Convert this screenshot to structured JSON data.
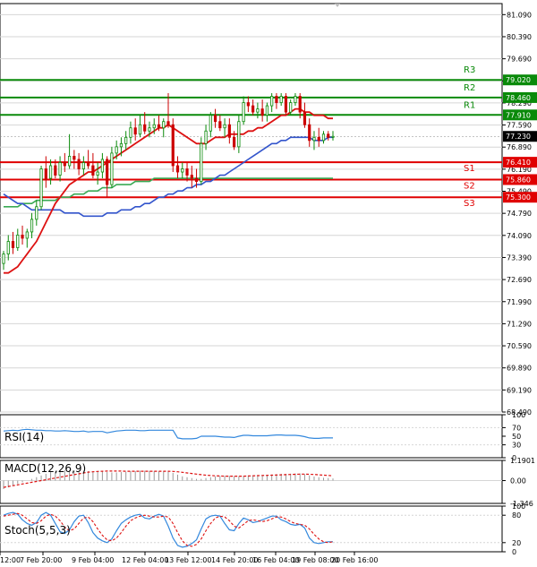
{
  "colors": {
    "bg": "#ffffff",
    "grid": "#d6d6d6",
    "level_green": "#0a8a0a",
    "level_red": "#e00000",
    "bull": "#0a8a0a",
    "bear": "#cc0000",
    "ma_fast": "#dd1111",
    "ma_mid": "#3355cc",
    "ma_slow": "#3aaa55",
    "macd_signal": "#dd1111",
    "stoch_k": "#3388dd",
    "stoch_d": "#dd1111",
    "rsi": "#3388dd",
    "frame": "#000000"
  },
  "chart_data": [
    {
      "type": "candlestick",
      "panel": "main",
      "y_ticks": [
        "81.090",
        "80.390",
        "79.690",
        "78.990",
        "78.290",
        "77.590",
        "76.890",
        "76.190",
        "75.490",
        "74.790",
        "74.090",
        "73.390",
        "72.690",
        "71.990",
        "71.290",
        "70.590",
        "69.890",
        "69.190",
        "68.490"
      ],
      "ylim": [
        68.49,
        81.44
      ],
      "x_labels": [
        "12:00",
        "7 Feb 20:00",
        "9 Feb 04:00",
        "12 Feb 04:00",
        "13 Feb 12:00",
        "14 Feb 20:00",
        "16 Feb 04:00",
        "19 Feb 08:00",
        "20 Feb 16:00"
      ],
      "levels": [
        {
          "name": "R3",
          "price": 79.02,
          "label": "79.020",
          "color": "green"
        },
        {
          "name": "R2",
          "price": 78.46,
          "label": "78.460",
          "color": "green"
        },
        {
          "name": "R1",
          "price": 77.91,
          "label": "77.910",
          "color": "green"
        },
        {
          "name": "S1",
          "price": 76.41,
          "label": "76.410",
          "color": "red"
        },
        {
          "name": "S2",
          "price": 75.86,
          "label": "75.860",
          "color": "red"
        },
        {
          "name": "S3",
          "price": 75.3,
          "label": "75.300",
          "color": "red"
        }
      ],
      "current_price": {
        "price": 77.23,
        "label": "77.230"
      },
      "ohlc": [
        [
          73.2,
          73.6,
          73.0,
          73.5
        ],
        [
          73.5,
          74.1,
          73.3,
          73.9
        ],
        [
          73.9,
          74.2,
          73.5,
          73.7
        ],
        [
          73.7,
          74.3,
          73.6,
          74.1
        ],
        [
          74.1,
          74.4,
          73.8,
          74.0
        ],
        [
          74.0,
          74.3,
          73.7,
          74.2
        ],
        [
          74.2,
          74.8,
          74.0,
          74.6
        ],
        [
          74.6,
          75.2,
          74.4,
          75.0
        ],
        [
          75.0,
          76.3,
          74.9,
          76.2
        ],
        [
          76.2,
          76.6,
          75.6,
          75.9
        ],
        [
          75.9,
          76.5,
          75.7,
          76.3
        ],
        [
          76.3,
          76.5,
          75.9,
          76.0
        ],
        [
          76.0,
          76.6,
          75.8,
          76.4
        ],
        [
          76.4,
          76.7,
          76.1,
          76.3
        ],
        [
          76.3,
          77.3,
          76.2,
          76.6
        ],
        [
          76.6,
          76.8,
          76.2,
          76.5
        ],
        [
          76.5,
          76.7,
          76.0,
          76.2
        ],
        [
          76.2,
          76.6,
          76.0,
          76.4
        ],
        [
          76.4,
          76.8,
          76.2,
          76.3
        ],
        [
          76.3,
          76.7,
          75.9,
          76.0
        ],
        [
          76.0,
          76.4,
          75.7,
          76.1
        ],
        [
          76.1,
          76.7,
          75.9,
          76.5
        ],
        [
          76.5,
          76.6,
          75.3,
          75.7
        ],
        [
          75.7,
          76.9,
          75.6,
          76.7
        ],
        [
          76.7,
          77.1,
          76.5,
          76.9
        ],
        [
          76.9,
          77.2,
          76.6,
          77.0
        ],
        [
          77.0,
          77.4,
          76.8,
          77.2
        ],
        [
          77.2,
          77.7,
          77.0,
          77.5
        ],
        [
          77.5,
          77.8,
          77.1,
          77.3
        ],
        [
          77.3,
          77.9,
          77.2,
          77.6
        ],
        [
          77.6,
          78.0,
          77.3,
          77.4
        ],
        [
          77.4,
          77.7,
          77.2,
          77.5
        ],
        [
          77.5,
          77.8,
          77.3,
          77.6
        ],
        [
          77.6,
          77.9,
          77.4,
          77.5
        ],
        [
          77.5,
          77.8,
          77.2,
          77.7
        ],
        [
          77.7,
          78.6,
          77.5,
          77.6
        ],
        [
          77.6,
          77.8,
          76.1,
          76.3
        ],
        [
          76.3,
          76.6,
          75.9,
          76.1
        ],
        [
          76.1,
          76.4,
          75.9,
          76.2
        ],
        [
          76.2,
          76.4,
          75.8,
          76.0
        ],
        [
          76.0,
          76.3,
          75.6,
          75.9
        ],
        [
          75.9,
          76.2,
          75.6,
          75.8
        ],
        [
          75.8,
          77.2,
          75.7,
          77.0
        ],
        [
          77.0,
          77.6,
          76.8,
          77.4
        ],
        [
          77.4,
          78.0,
          77.2,
          77.9
        ],
        [
          77.9,
          78.1,
          77.5,
          77.7
        ],
        [
          77.7,
          77.9,
          77.4,
          77.5
        ],
        [
          77.5,
          77.8,
          77.2,
          77.6
        ],
        [
          77.6,
          77.8,
          77.0,
          77.2
        ],
        [
          77.2,
          77.4,
          76.8,
          76.9
        ],
        [
          76.9,
          77.9,
          76.7,
          77.7
        ],
        [
          77.7,
          78.5,
          77.6,
          78.3
        ],
        [
          78.3,
          78.5,
          78.0,
          78.2
        ],
        [
          78.2,
          78.4,
          77.9,
          78.0
        ],
        [
          78.0,
          78.3,
          77.8,
          78.1
        ],
        [
          78.1,
          78.4,
          77.7,
          77.9
        ],
        [
          77.9,
          78.3,
          77.7,
          78.2
        ],
        [
          78.2,
          78.6,
          78.0,
          78.5
        ],
        [
          78.5,
          78.6,
          78.1,
          78.3
        ],
        [
          78.3,
          78.6,
          78.2,
          78.5
        ],
        [
          78.5,
          78.6,
          77.9,
          78.0
        ],
        [
          78.0,
          78.4,
          77.9,
          78.3
        ],
        [
          78.3,
          78.6,
          78.2,
          78.5
        ],
        [
          78.5,
          78.6,
          77.8,
          78.0
        ],
        [
          78.0,
          78.3,
          77.5,
          77.6
        ],
        [
          77.6,
          77.8,
          76.9,
          77.1
        ],
        [
          77.1,
          77.4,
          76.8,
          77.2
        ],
        [
          77.2,
          77.5,
          76.9,
          77.1
        ],
        [
          77.1,
          77.4,
          77.0,
          77.3
        ],
        [
          77.3,
          77.4,
          77.1,
          77.2
        ],
        [
          77.2,
          77.4,
          77.1,
          77.23
        ]
      ],
      "ma_fast": [
        72.9,
        72.9,
        73.0,
        73.1,
        73.3,
        73.5,
        73.7,
        73.9,
        74.2,
        74.5,
        74.8,
        75.1,
        75.3,
        75.5,
        75.7,
        75.8,
        75.9,
        76.0,
        76.1,
        76.1,
        76.2,
        76.3,
        76.4,
        76.5,
        76.6,
        76.7,
        76.8,
        76.9,
        77.0,
        77.1,
        77.2,
        77.3,
        77.4,
        77.5,
        77.5,
        77.6,
        77.5,
        77.4,
        77.3,
        77.2,
        77.1,
        77.0,
        77.0,
        77.0,
        77.1,
        77.2,
        77.2,
        77.2,
        77.3,
        77.3,
        77.3,
        77.3,
        77.4,
        77.4,
        77.5,
        77.5,
        77.6,
        77.7,
        77.8,
        77.9,
        77.9,
        78.0,
        78.1,
        78.1,
        78.0,
        78.0,
        77.9,
        77.9,
        77.9,
        77.8,
        77.8
      ],
      "ma_mid": [
        75.4,
        75.3,
        75.2,
        75.1,
        75.1,
        75.0,
        74.9,
        74.9,
        74.9,
        74.9,
        74.9,
        74.9,
        74.9,
        74.8,
        74.8,
        74.8,
        74.8,
        74.7,
        74.7,
        74.7,
        74.7,
        74.7,
        74.8,
        74.8,
        74.8,
        74.9,
        74.9,
        74.9,
        75.0,
        75.0,
        75.1,
        75.1,
        75.2,
        75.3,
        75.3,
        75.4,
        75.4,
        75.5,
        75.5,
        75.6,
        75.6,
        75.7,
        75.7,
        75.8,
        75.8,
        75.9,
        76.0,
        76.0,
        76.1,
        76.2,
        76.3,
        76.4,
        76.5,
        76.6,
        76.7,
        76.8,
        76.9,
        77.0,
        77.0,
        77.1,
        77.1,
        77.2,
        77.2,
        77.2,
        77.2,
        77.2,
        77.1,
        77.1,
        77.1,
        77.2,
        77.2
      ],
      "ma_slow": [
        75.0,
        75.0,
        75.0,
        75.0,
        75.1,
        75.1,
        75.1,
        75.2,
        75.2,
        75.2,
        75.2,
        75.2,
        75.3,
        75.3,
        75.3,
        75.4,
        75.4,
        75.4,
        75.5,
        75.5,
        75.5,
        75.6,
        75.6,
        75.6,
        75.7,
        75.7,
        75.7,
        75.7,
        75.8,
        75.8,
        75.8,
        75.8,
        75.9,
        75.9,
        75.9,
        75.9,
        75.9,
        75.9,
        75.9,
        75.9,
        75.9,
        75.9,
        75.9,
        75.9,
        75.9,
        75.9,
        75.9,
        75.9,
        75.9,
        75.9,
        75.9,
        75.9,
        75.9,
        75.9,
        75.9,
        75.9,
        75.9,
        75.9,
        75.9,
        75.9,
        75.9,
        75.9,
        75.9,
        75.9,
        75.9,
        75.9,
        75.9,
        75.9,
        75.9,
        75.9,
        75.9
      ]
    },
    {
      "type": "line",
      "panel": "rsi",
      "title": "RSI(14)",
      "ylim": [
        0,
        100
      ],
      "y_ticks": [
        "100",
        "70",
        "50",
        "30",
        "0"
      ],
      "values": [
        62,
        63,
        64,
        63,
        65,
        66,
        65,
        64,
        64,
        63,
        63,
        62,
        62,
        63,
        62,
        61,
        61,
        62,
        60,
        61,
        61,
        61,
        58,
        60,
        62,
        63,
        64,
        64,
        64,
        63,
        63,
        64,
        64,
        64,
        64,
        64,
        64,
        46,
        44,
        44,
        44,
        45,
        50,
        50,
        50,
        50,
        49,
        48,
        48,
        47,
        50,
        52,
        52,
        51,
        51,
        51,
        51,
        52,
        53,
        53,
        52,
        52,
        52,
        51,
        49,
        46,
        45,
        45,
        46,
        46,
        46
      ]
    },
    {
      "type": "bar+line",
      "panel": "macd",
      "title": "MACD(12,26,9)",
      "ylim": [
        -1.346,
        1.1901
      ],
      "y_ticks": [
        "1.1901",
        "0.00",
        "-1.346"
      ],
      "histogram": [
        -0.5,
        -0.4,
        -0.3,
        -0.2,
        -0.1,
        0.0,
        0.1,
        0.2,
        0.3,
        0.4,
        0.5,
        0.55,
        0.6,
        0.62,
        0.62,
        0.6,
        0.6,
        0.58,
        0.56,
        0.55,
        0.55,
        0.54,
        0.5,
        0.48,
        0.48,
        0.5,
        0.52,
        0.55,
        0.56,
        0.58,
        0.58,
        0.57,
        0.57,
        0.56,
        0.56,
        0.55,
        0.45,
        0.35,
        0.25,
        0.2,
        0.15,
        0.1,
        0.1,
        0.15,
        0.2,
        0.25,
        0.27,
        0.28,
        0.28,
        0.26,
        0.26,
        0.28,
        0.3,
        0.32,
        0.33,
        0.33,
        0.34,
        0.36,
        0.38,
        0.4,
        0.4,
        0.41,
        0.42,
        0.42,
        0.38,
        0.3,
        0.24,
        0.2,
        0.17,
        0.15,
        0.13
      ],
      "signal": [
        -0.4,
        -0.35,
        -0.3,
        -0.25,
        -0.2,
        -0.15,
        -0.1,
        -0.05,
        0.0,
        0.05,
        0.1,
        0.15,
        0.2,
        0.25,
        0.3,
        0.35,
        0.4,
        0.45,
        0.5,
        0.52,
        0.54,
        0.55,
        0.56,
        0.56,
        0.56,
        0.56,
        0.55,
        0.55,
        0.55,
        0.55,
        0.55,
        0.55,
        0.55,
        0.55,
        0.55,
        0.55,
        0.54,
        0.52,
        0.49,
        0.45,
        0.42,
        0.38,
        0.35,
        0.32,
        0.3,
        0.28,
        0.27,
        0.26,
        0.26,
        0.26,
        0.26,
        0.26,
        0.27,
        0.28,
        0.29,
        0.3,
        0.31,
        0.32,
        0.33,
        0.34,
        0.35,
        0.36,
        0.37,
        0.38,
        0.38,
        0.37,
        0.36,
        0.34,
        0.32,
        0.3,
        0.28
      ]
    },
    {
      "type": "line",
      "panel": "stoch",
      "title": "Stoch(5,5,3)",
      "ylim": [
        0,
        100
      ],
      "y_ticks": [
        "100",
        "80",
        "20",
        "0"
      ],
      "k": [
        80,
        84,
        86,
        82,
        70,
        62,
        58,
        64,
        80,
        86,
        80,
        62,
        44,
        40,
        48,
        66,
        78,
        80,
        64,
        42,
        30,
        24,
        20,
        28,
        46,
        62,
        70,
        76,
        80,
        82,
        74,
        72,
        78,
        82,
        78,
        56,
        30,
        14,
        10,
        12,
        18,
        26,
        50,
        72,
        78,
        80,
        78,
        62,
        48,
        46,
        62,
        74,
        70,
        64,
        66,
        70,
        74,
        78,
        78,
        70,
        66,
        60,
        58,
        60,
        52,
        30,
        20,
        18,
        20,
        22,
        22
      ],
      "d": [
        78,
        80,
        82,
        84,
        80,
        72,
        64,
        62,
        68,
        78,
        82,
        78,
        68,
        54,
        46,
        50,
        62,
        74,
        76,
        66,
        50,
        36,
        26,
        24,
        30,
        42,
        56,
        68,
        74,
        78,
        80,
        78,
        76,
        76,
        78,
        76,
        62,
        42,
        24,
        14,
        12,
        16,
        28,
        46,
        62,
        74,
        78,
        76,
        68,
        56,
        52,
        60,
        68,
        70,
        68,
        66,
        68,
        72,
        76,
        76,
        72,
        66,
        62,
        60,
        58,
        50,
        38,
        28,
        22,
        20,
        22
      ]
    }
  ]
}
